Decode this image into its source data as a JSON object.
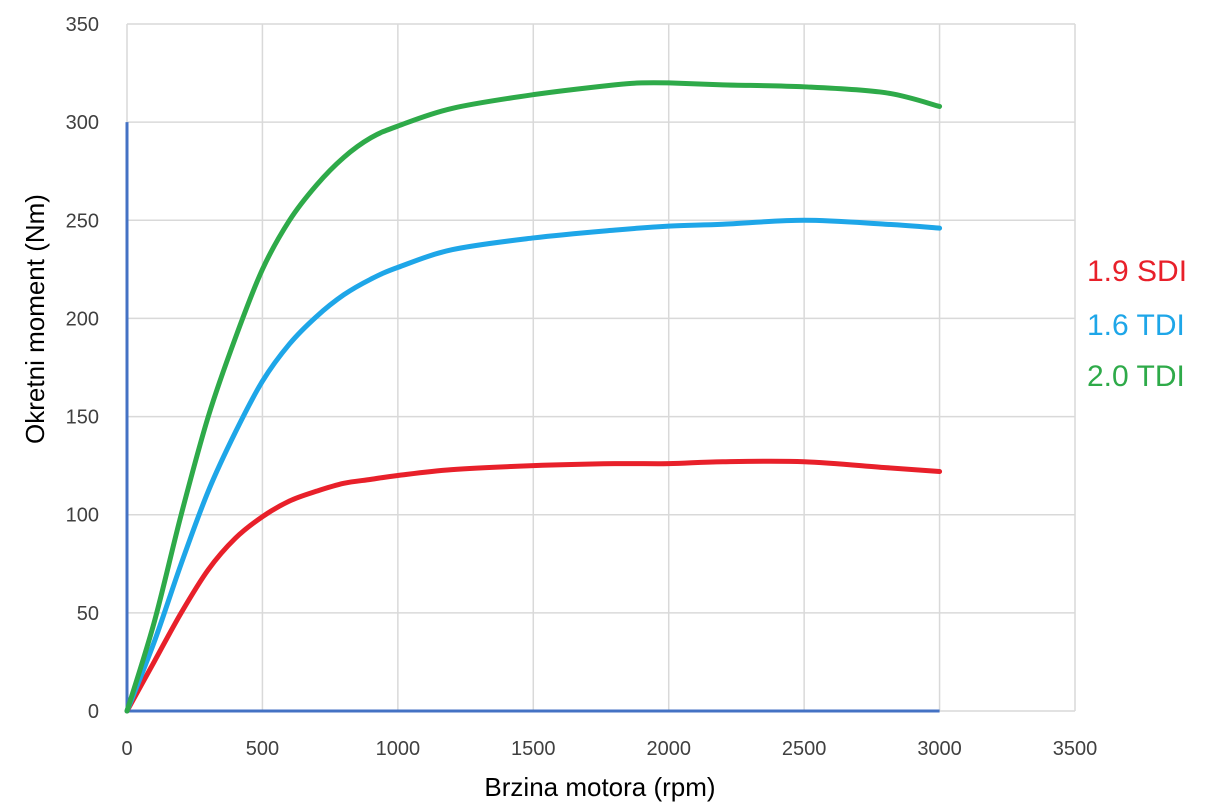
{
  "chart_data": {
    "type": "line",
    "xlabel": "Brzina motora (rpm)",
    "ylabel": "Okretni moment (Nm)",
    "xlim": [
      0,
      3500
    ],
    "ylim": [
      0,
      350
    ],
    "xticks": [
      "0",
      "500",
      "1000",
      "1500",
      "2000",
      "2500",
      "3000",
      "3500"
    ],
    "yticks": [
      "0",
      "50",
      "100",
      "150",
      "200",
      "250",
      "300",
      "350"
    ],
    "grid": true,
    "legend_position": "right",
    "axis_lines_color": "#4472C4",
    "reference_lines": [
      {
        "x": [
          0,
          0
        ],
        "y": [
          0,
          300
        ]
      },
      {
        "x": [
          0,
          3000
        ],
        "y": [
          0,
          0
        ]
      }
    ],
    "series": [
      {
        "name": "1.9 SDI",
        "color": "#E8202A",
        "x": [
          0,
          100,
          200,
          300,
          400,
          500,
          600,
          700,
          800,
          900,
          1000,
          1200,
          1500,
          1800,
          2000,
          2200,
          2500,
          2800,
          3000
        ],
        "y": [
          0,
          25,
          50,
          72,
          88,
          99,
          107,
          112,
          116,
          118,
          120,
          123,
          125,
          126,
          126,
          127,
          127,
          124,
          122
        ]
      },
      {
        "name": "1.6 TDI",
        "color": "#1EA6E8",
        "x": [
          0,
          100,
          200,
          300,
          400,
          500,
          600,
          700,
          800,
          900,
          1000,
          1200,
          1500,
          1800,
          2000,
          2200,
          2500,
          2800,
          3000
        ],
        "y": [
          0,
          35,
          75,
          112,
          142,
          168,
          187,
          201,
          212,
          220,
          226,
          235,
          241,
          245,
          247,
          248,
          250,
          248,
          246
        ]
      },
      {
        "name": "2.0 TDI",
        "color": "#2EAA49",
        "x": [
          0,
          100,
          200,
          300,
          400,
          500,
          600,
          700,
          800,
          900,
          1000,
          1200,
          1500,
          1800,
          1900,
          2000,
          2200,
          2500,
          2800,
          3000
        ],
        "y": [
          0,
          45,
          100,
          150,
          190,
          225,
          250,
          268,
          282,
          292,
          298,
          307,
          314,
          319,
          320,
          320,
          319,
          318,
          315,
          308
        ]
      }
    ]
  }
}
